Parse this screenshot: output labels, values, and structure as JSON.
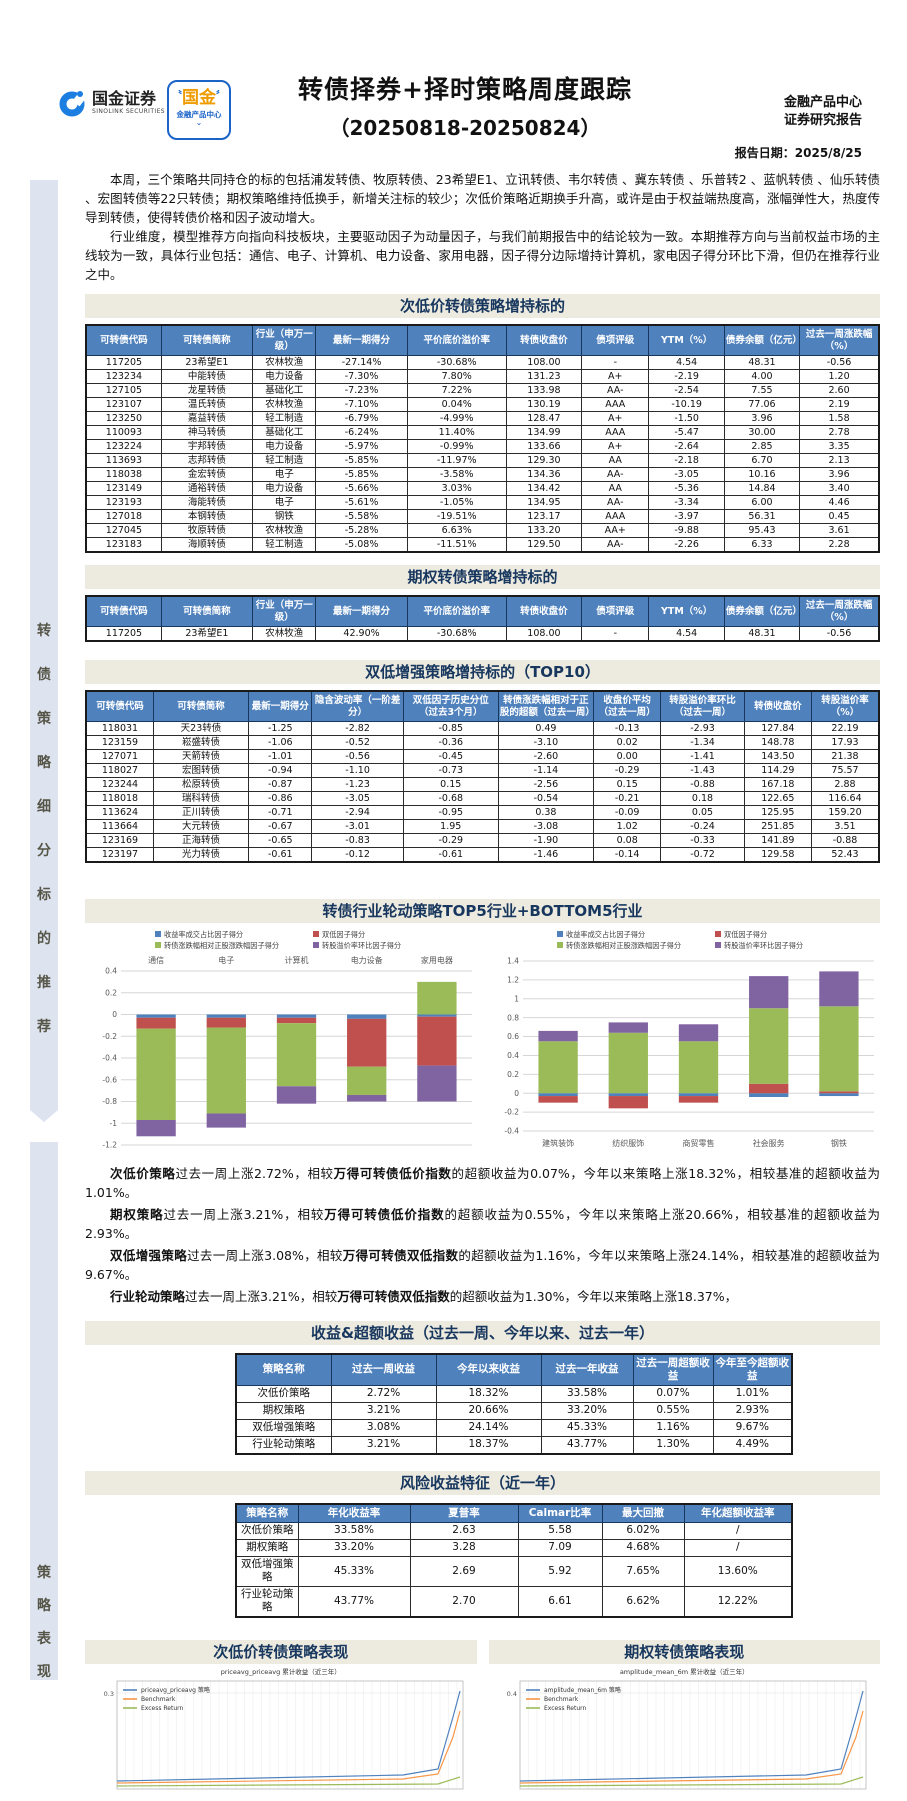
{
  "header": {
    "logo_title": "国金证券",
    "logo_subtitle": "SINOLINK SECURITIES",
    "badge_top": "国金",
    "badge_bottom": "金融产品中心",
    "title_line1": "转债择券+择时策略周度跟踪",
    "title_line2": "（20250818-20250824）",
    "dept_line1": "金融产品中心",
    "dept_line2": "证券研究报告",
    "report_date": "报告日期：2025/8/25"
  },
  "sidebar": {
    "banner1": "转债策略细分标的推荐",
    "banner2": "策略表现"
  },
  "intro": {
    "p1": "本周，三个策略共同持仓的标的包括浦发转债、牧原转债、23希望E1、立讯转债、韦尔转债 、冀东转债 、乐普转2 、蓝帆转债 、仙乐转债 、宏图转债等22只转债；期权策略维持低换手，新增关注标的较少；次低价策略近期换手升高，或许是由于权益端热度高，涨幅弹性大，热度传导到转债，使得转债价格和因子波动增大。",
    "p2": "行业维度，模型推荐方向指向科技板块，主要驱动因子为动量因子，与我们前期报告中的结论较为一致。本期推荐方向与当前权益市场的主线较为一致，具体行业包括：通信、电子、计算机、电力设备、家用电器，因子得分边际增持计算机，家电因子得分环比下滑，但仍在推荐行业之中。"
  },
  "table1": {
    "title": "次低价转债策略增持标的",
    "headers": [
      "可转债代码",
      "可转债简称",
      "行业（申万一级）",
      "最新一期得分",
      "平价底价溢价率",
      "转债收盘价",
      "债项评级",
      "YTM（%）",
      "债券余额（亿元）",
      "过去一周涨跌幅（%）"
    ],
    "rows": [
      [
        "117205",
        "23希望E1",
        "农林牧渔",
        "-27.14%",
        "-30.68%",
        "108.00",
        "-",
        "4.54",
        "48.31",
        "-0.56"
      ],
      [
        "123234",
        "中能转债",
        "电力设备",
        "-7.30%",
        "7.80%",
        "131.23",
        "A+",
        "-2.19",
        "4.00",
        "1.20"
      ],
      [
        "127105",
        "龙星转债",
        "基础化工",
        "-7.23%",
        "7.22%",
        "133.98",
        "AA-",
        "-2.54",
        "7.55",
        "2.60"
      ],
      [
        "123107",
        "温氏转债",
        "农林牧渔",
        "-7.10%",
        "0.04%",
        "130.19",
        "AAA",
        "-10.19",
        "77.06",
        "2.19"
      ],
      [
        "123250",
        "嘉益转债",
        "轻工制造",
        "-6.79%",
        "-4.99%",
        "128.47",
        "A+",
        "-1.50",
        "3.96",
        "1.58"
      ],
      [
        "110093",
        "神马转债",
        "基础化工",
        "-6.24%",
        "11.40%",
        "134.99",
        "AAA",
        "-5.47",
        "30.00",
        "2.78"
      ],
      [
        "123224",
        "宇邦转债",
        "电力设备",
        "-5.97%",
        "-0.99%",
        "133.66",
        "A+",
        "-2.64",
        "2.85",
        "3.35"
      ],
      [
        "113693",
        "志邦转债",
        "轻工制造",
        "-5.85%",
        "-11.97%",
        "129.30",
        "AA",
        "-2.18",
        "6.70",
        "2.13"
      ],
      [
        "118038",
        "金宏转债",
        "电子",
        "-5.85%",
        "-3.58%",
        "134.36",
        "AA-",
        "-3.05",
        "10.16",
        "3.96"
      ],
      [
        "123149",
        "通裕转债",
        "电力设备",
        "-5.66%",
        "3.03%",
        "134.42",
        "AA",
        "-5.36",
        "14.84",
        "3.40"
      ],
      [
        "123193",
        "海能转债",
        "电子",
        "-5.61%",
        "-1.05%",
        "134.95",
        "AA-",
        "-3.34",
        "6.00",
        "4.46"
      ],
      [
        "127018",
        "本钢转债",
        "钢铁",
        "-5.58%",
        "-19.51%",
        "123.17",
        "AAA",
        "-3.97",
        "56.31",
        "0.45"
      ],
      [
        "127045",
        "牧原转债",
        "农林牧渔",
        "-5.28%",
        "6.63%",
        "133.20",
        "AA+",
        "-9.88",
        "95.43",
        "3.61"
      ],
      [
        "123183",
        "海顺转债",
        "轻工制造",
        "-5.08%",
        "-11.51%",
        "129.50",
        "AA-",
        "-2.26",
        "6.33",
        "2.28"
      ]
    ]
  },
  "table2": {
    "title": "期权转债策略增持标的",
    "headers": [
      "可转债代码",
      "可转债简称",
      "行业（申万一级）",
      "最新一期得分",
      "平价底价溢价率",
      "转债收盘价",
      "债项评级",
      "YTM（%）",
      "债券余额（亿元）",
      "过去一周涨跌幅（%）"
    ],
    "rows": [
      [
        "117205",
        "23希望E1",
        "农林牧渔",
        "42.90%",
        "-30.68%",
        "108.00",
        "-",
        "4.54",
        "48.31",
        "-0.56"
      ]
    ]
  },
  "table3": {
    "title": "双低增强策略增持标的（TOP10）",
    "headers": [
      "可转债代码",
      "可转债简称",
      "最新一期得分",
      "隐含波动率（一阶差分）",
      "双低因子历史分位（过去3个月）",
      "转债涨跌幅相对于正股的超额（过去一周）",
      "收盘价平均（过去一周）",
      "转股溢价率环比（过去一周）",
      "转债收盘价",
      "转股溢价率（%）"
    ],
    "rows": [
      [
        "118031",
        "天23转债",
        "-1.25",
        "-2.82",
        "-0.85",
        "0.49",
        "-0.13",
        "-2.93",
        "127.84",
        "22.19"
      ],
      [
        "123159",
        "崧盛转债",
        "-1.06",
        "-0.52",
        "-0.36",
        "-3.10",
        "0.02",
        "-1.34",
        "148.78",
        "17.93"
      ],
      [
        "127071",
        "天箭转债",
        "-1.01",
        "-0.56",
        "-0.45",
        "-2.60",
        "0.00",
        "-1.41",
        "143.50",
        "21.38"
      ],
      [
        "118027",
        "宏图转债",
        "-0.94",
        "-1.10",
        "-0.73",
        "-1.14",
        "-0.29",
        "-1.43",
        "114.29",
        "75.57"
      ],
      [
        "123244",
        "松原转债",
        "-0.87",
        "-1.23",
        "0.15",
        "-2.56",
        "0.15",
        "-0.88",
        "167.18",
        "2.88"
      ],
      [
        "118018",
        "瑞科转债",
        "-0.86",
        "-3.05",
        "-0.68",
        "-0.54",
        "-0.21",
        "0.18",
        "122.65",
        "116.64"
      ],
      [
        "113624",
        "正川转债",
        "-0.71",
        "-2.94",
        "-0.95",
        "0.38",
        "-0.09",
        "0.05",
        "125.95",
        "159.20"
      ],
      [
        "113664",
        "大元转债",
        "-0.67",
        "-3.01",
        "1.95",
        "-3.08",
        "1.02",
        "-0.24",
        "251.85",
        "3.51"
      ],
      [
        "123169",
        "正海转债",
        "-0.65",
        "-0.83",
        "-0.29",
        "-1.90",
        "0.08",
        "-0.33",
        "141.89",
        "-0.88"
      ],
      [
        "123197",
        "光力转债",
        "-0.61",
        "-0.12",
        "-0.61",
        "-1.46",
        "-0.14",
        "-0.72",
        "129.58",
        "52.43"
      ]
    ]
  },
  "charts_section": {
    "title": "转债行业轮动策略TOP5行业+BOTTOM5行业"
  },
  "chart_data": [
    {
      "type": "bar",
      "stacked": true,
      "title": "TOP5行业",
      "categories": [
        "通信",
        "电子",
        "计算机",
        "电力设备",
        "家用电器"
      ],
      "series": [
        {
          "name": "收益率成交占比因子得分",
          "color": "#4f81bd",
          "values": [
            -0.03,
            -0.03,
            -0.03,
            -0.04,
            -0.02
          ]
        },
        {
          "name": "双低因子得分",
          "color": "#c0504d",
          "values": [
            -0.1,
            -0.09,
            -0.05,
            -0.44,
            -0.45
          ]
        },
        {
          "name": "转债涨跌幅相对正股涨跌幅因子得分",
          "color": "#9bbb59",
          "values": [
            -0.84,
            -0.79,
            -0.58,
            -0.26,
            0.3
          ]
        },
        {
          "name": "转股溢价率环比因子得分",
          "color": "#8064a2",
          "values": [
            -0.15,
            -0.13,
            -0.16,
            -0.06,
            -0.33
          ]
        }
      ],
      "ylim": [
        -1.2,
        0.4
      ],
      "ytick": 0.2,
      "category_labels": "top",
      "grid": true,
      "legend_position": "top"
    },
    {
      "type": "bar",
      "stacked": true,
      "title": "BOTTOM5行业",
      "categories": [
        "建筑装饰",
        "纺织服饰",
        "商贸零售",
        "社会服务",
        "钢铁"
      ],
      "series": [
        {
          "name": "收益率成交占比因子得分",
          "color": "#4f81bd",
          "values": [
            -0.03,
            -0.03,
            -0.03,
            -0.04,
            -0.03
          ]
        },
        {
          "name": "双低因子得分",
          "color": "#c0504d",
          "values": [
            -0.07,
            -0.13,
            -0.07,
            0.1,
            0.02
          ]
        },
        {
          "name": "转债涨跌幅相对正股涨跌幅因子得分",
          "color": "#9bbb59",
          "values": [
            0.55,
            0.64,
            0.55,
            0.8,
            0.9
          ]
        },
        {
          "name": "转股溢价率环比因子得分",
          "color": "#8064a2",
          "values": [
            0.11,
            0.11,
            0.18,
            0.34,
            0.37
          ]
        }
      ],
      "ylim": [
        -0.4,
        1.4
      ],
      "ytick": 0.2,
      "category_labels": "bottom",
      "grid": true,
      "legend_position": "top"
    },
    {
      "type": "line",
      "title": "priceavg_priceavg 累计收益（近三年）",
      "legend": [
        "priceavg_priceavg 策略",
        "Benchmark",
        "Excess Return"
      ],
      "colors": [
        "#4f81bd",
        "#f79646",
        "#9bbb59"
      ],
      "visible_ytick": "0.3"
    },
    {
      "type": "line",
      "title": "amplitude_mean_6m 累计收益（近三年）",
      "legend": [
        "amplitude_mean_6m 策略",
        "Benchmark",
        "Excess Return"
      ],
      "colors": [
        "#4f81bd",
        "#f79646",
        "#9bbb59"
      ],
      "visible_ytick": "0.4"
    }
  ],
  "analysis": {
    "paragraphs": [
      [
        {
          "b": 1,
          "t": "次低价策略"
        },
        {
          "t": "过去一周上涨2.72%，相较"
        },
        {
          "b": 1,
          "t": "万得可转债低价指数"
        },
        {
          "t": "的超额收益为0.07%，今年以来策略上涨18.32%，相较基准的超额收益为1.01%。"
        }
      ],
      [
        {
          "b": 1,
          "t": "期权策略"
        },
        {
          "t": "过去一周上涨3.21%，相较"
        },
        {
          "b": 1,
          "t": "万得可转债低价指数"
        },
        {
          "t": "的超额收益为0.55%，今年以来策略上涨20.66%，相较基准的超额收益为2.93%。"
        }
      ],
      [
        {
          "b": 1,
          "t": "双低增强策略"
        },
        {
          "t": "过去一周上涨3.08%，相较"
        },
        {
          "b": 1,
          "t": "万得可转债双低指数"
        },
        {
          "t": "的超额收益为1.16%，今年以来策略上涨24.14%，相较基准的超额收益为9.67%。"
        }
      ],
      [
        {
          "b": 1,
          "t": "行业轮动策略"
        },
        {
          "t": "过去一周上涨3.21%，相较"
        },
        {
          "b": 1,
          "t": "万得可转债双低指数"
        },
        {
          "t": "的超额收益为1.30%，今年以来策略上涨18.37%，"
        }
      ]
    ]
  },
  "returns_table": {
    "title": "收益&超额收益（过去一周、今年以来、过去一年）",
    "headers": [
      "策略名称",
      "过去一周收益",
      "今年以来收益",
      "过去一年收益",
      "过去一周超额收益",
      "今年至今超额收益"
    ],
    "rows": [
      [
        "次低价策略",
        "2.72%",
        "18.32%",
        "33.58%",
        "0.07%",
        "1.01%"
      ],
      [
        "期权策略",
        "3.21%",
        "20.66%",
        "33.20%",
        "0.55%",
        "2.93%"
      ],
      [
        "双低增强策略",
        "3.08%",
        "24.14%",
        "45.33%",
        "1.16%",
        "9.67%"
      ],
      [
        "行业轮动策略",
        "3.21%",
        "18.37%",
        "43.77%",
        "1.30%",
        "4.49%"
      ]
    ]
  },
  "risk_table": {
    "title": "风险收益特征（近一年）",
    "headers": [
      "策略名称",
      "年化收益率",
      "夏普率",
      "Calmar比率",
      "最大回撤",
      "年化超额收益率"
    ],
    "rows": [
      [
        "次低价策略",
        "33.58%",
        "2.63",
        "5.58",
        "6.02%",
        "/"
      ],
      [
        "期权策略",
        "33.20%",
        "3.28",
        "7.09",
        "4.68%",
        "/"
      ],
      [
        "双低增强策略",
        "45.33%",
        "2.69",
        "5.92",
        "7.65%",
        "13.60%"
      ],
      [
        "行业轮动策略",
        "43.77%",
        "2.70",
        "6.61",
        "6.62%",
        "12.22%"
      ]
    ]
  },
  "bottom": {
    "left_title": "次低价转债策略表现",
    "right_title": "期权转债策略表现",
    "left_chart_title": "priceavg_priceavg 累计收益（近三年）",
    "right_chart_title": "amplitude_mean_6m 累计收益（近三年）"
  }
}
